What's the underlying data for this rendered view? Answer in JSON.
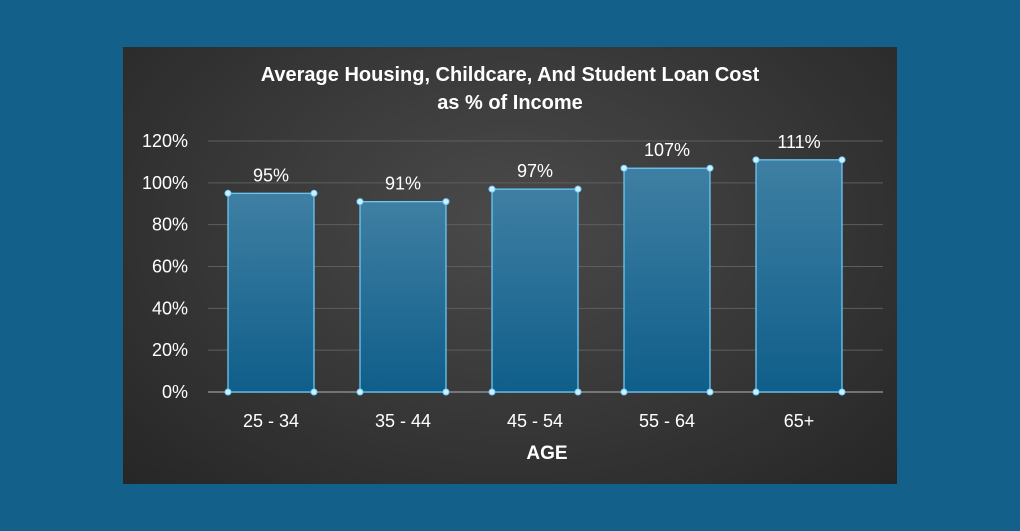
{
  "chart_data": {
    "type": "bar",
    "title": "Average Housing, Childcare, And Student Loan Cost",
    "subtitle": "as % of Income",
    "categories": [
      "25 - 34",
      "35 - 44",
      "45 - 54",
      "55 - 64",
      "65+"
    ],
    "values": [
      95,
      91,
      97,
      107,
      111
    ],
    "value_labels": [
      "95%",
      "91%",
      "97%",
      "107%",
      "111%"
    ],
    "xlabel": "AGE",
    "ylabel": "",
    "ylim": [
      0,
      120
    ],
    "yticks": [
      "0%",
      "20%",
      "40%",
      "60%",
      "80%",
      "100%",
      "120%"
    ],
    "grid": true,
    "legend": "none",
    "colors": {
      "page_background": "#13618a",
      "bar_top": "#3f7fa3",
      "bar_bottom": "#0f5e8a",
      "bar_outline": "#6fd0ff"
    }
  }
}
